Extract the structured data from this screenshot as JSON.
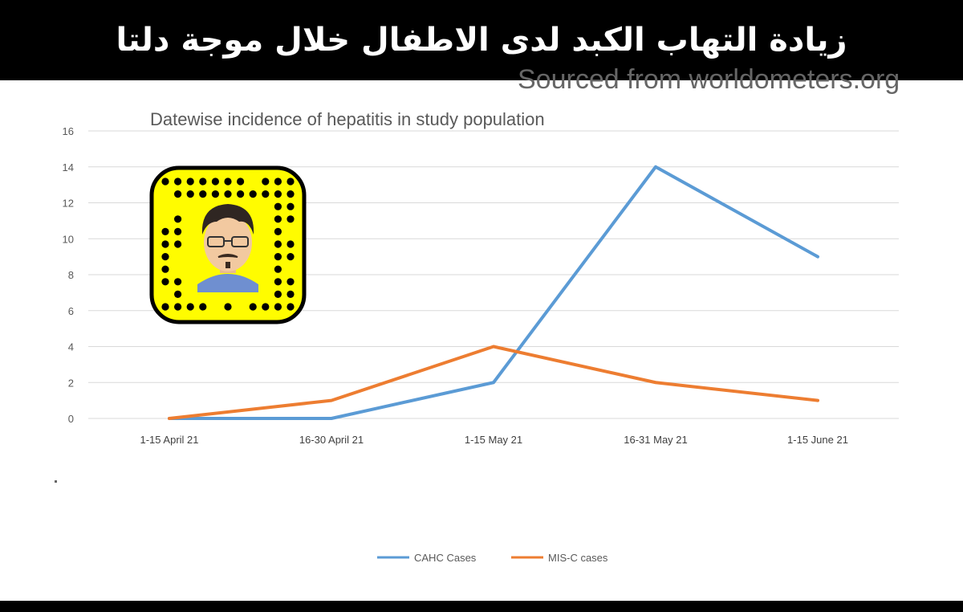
{
  "banner": {
    "title": "زيادة التهاب الكبد لدى الاطفال خلال موجة دلتا"
  },
  "source_text": "Sourced from worldometers.org",
  "chart_data": {
    "type": "line",
    "title": "Datewise incidence of hepatitis in study population",
    "categories": [
      "1-15 April 21",
      "16-30 April 21",
      "1-15 May 21",
      "16-31 May 21",
      "1-15 June 21"
    ],
    "series": [
      {
        "name": "CAHC Cases",
        "values": [
          0,
          0,
          2,
          14,
          9
        ],
        "color": "#5B9BD5"
      },
      {
        "name": "MIS-C cases",
        "values": [
          0,
          1,
          4,
          2,
          1
        ],
        "color": "#ED7D31"
      }
    ],
    "ylim": [
      0,
      16
    ],
    "yticks": [
      0,
      2,
      4,
      6,
      8,
      10,
      12,
      14,
      16
    ],
    "grid": true,
    "legend": "bottom",
    "xlabel": "",
    "ylabel": ""
  },
  "colors": {
    "banner_bg": "#000000",
    "grid": "#D9D9D9",
    "snapcode_yellow": "#FFFC00"
  }
}
